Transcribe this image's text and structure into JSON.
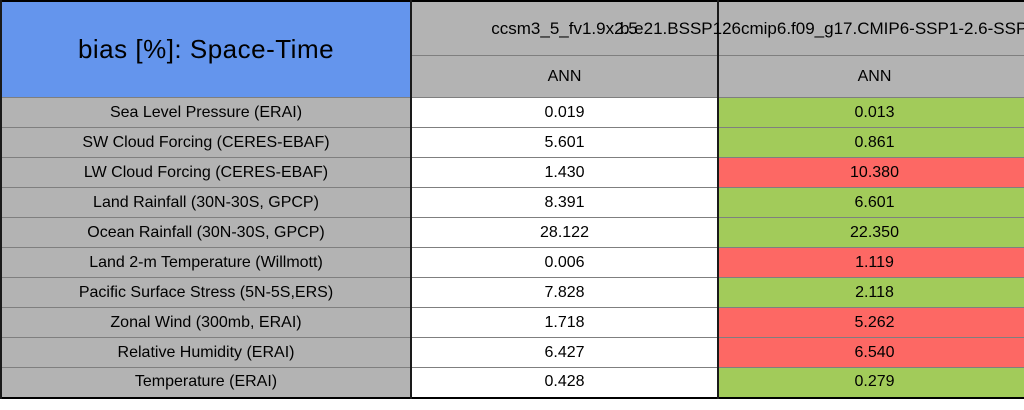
{
  "table": {
    "title": "bias [%]: Space-Time",
    "columns": [
      {
        "model": "ccsm3_5_fv1.9x2.5",
        "season": "ANN"
      },
      {
        "model": "b.e21.BSSP126cmip6.f09_g17.CMIP6-SSP1-2.6-SSP",
        "season": "ANN"
      }
    ],
    "rows": [
      {
        "label": "Sea Level Pressure (ERAI)",
        "values": [
          "0.019",
          "0.013"
        ],
        "status": "better"
      },
      {
        "label": "SW Cloud Forcing (CERES-EBAF)",
        "values": [
          "5.601",
          "0.861"
        ],
        "status": "better"
      },
      {
        "label": "LW Cloud Forcing (CERES-EBAF)",
        "values": [
          "1.430",
          "10.380"
        ],
        "status": "worse"
      },
      {
        "label": "Land Rainfall (30N-30S, GPCP)",
        "values": [
          "8.391",
          "6.601"
        ],
        "status": "better"
      },
      {
        "label": "Ocean Rainfall (30N-30S, GPCP)",
        "values": [
          "28.122",
          "22.350"
        ],
        "status": "better"
      },
      {
        "label": "Land 2-m Temperature (Willmott)",
        "values": [
          "0.006",
          "1.119"
        ],
        "status": "worse"
      },
      {
        "label": "Pacific Surface Stress (5N-5S,ERS)",
        "values": [
          "7.828",
          "2.118"
        ],
        "status": "better"
      },
      {
        "label": "Zonal Wind (300mb, ERAI)",
        "values": [
          "1.718",
          "5.262"
        ],
        "status": "worse"
      },
      {
        "label": "Relative Humidity (ERAI)",
        "values": [
          "6.427",
          "6.540"
        ],
        "status": "worse"
      },
      {
        "label": "Temperature (ERAI)",
        "values": [
          "0.428",
          "0.279"
        ],
        "status": "better"
      }
    ]
  },
  "colors": {
    "title_blue": "#6495ed",
    "header_gray": "#b3b3b3",
    "better": "#a2cb5a",
    "worse": "#fd6864"
  }
}
